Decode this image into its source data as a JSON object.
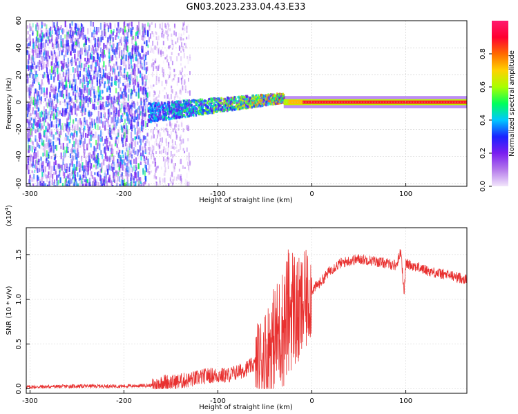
{
  "title": "GN03.2023.233.04.43.E33",
  "chart_data": [
    {
      "type": "heatmap",
      "xlabel": "Height of straight line (km)",
      "ylabel": "Frequency (Hz)",
      "xlim": [
        -304,
        165
      ],
      "ylim": [
        -62,
        60
      ],
      "xticks": [
        -300,
        -200,
        -100,
        0,
        100
      ],
      "yticks": [
        60,
        40,
        20,
        0,
        -20,
        -40,
        -60
      ],
      "colorbar": {
        "label": "Normalized spectral amplitude",
        "range": [
          0,
          1
        ],
        "ticks": [
          "0.0",
          "0.2",
          "0.4",
          "0.6",
          "0.8"
        ],
        "colors": [
          "#f2e6fb",
          "#b57aeb",
          "#7a1ef0",
          "#1a22ff",
          "#00c8ff",
          "#00ff5a",
          "#a8ff00",
          "#ffd200",
          "#ff6a00",
          "#ff0030",
          "#ff1a6e"
        ]
      },
      "regions": [
        {
          "x_range": [
            -304,
            -175
          ],
          "pattern": "broadband speckle noise",
          "amplitude": 0.15
        },
        {
          "x_range": [
            -175,
            -130
          ],
          "pattern": "noise to signal transition",
          "amplitude": 0.25
        },
        {
          "x_range": [
            -175,
            -30
          ],
          "pattern": "signal band near 0 Hz",
          "amplitude": 0.45,
          "drift_hz": [
            -7,
            4
          ]
        },
        {
          "x_range": [
            -30,
            165
          ],
          "pattern": "narrow strong line at 0 Hz",
          "amplitude": 1.0
        }
      ]
    },
    {
      "type": "line",
      "xlabel": "Height of straight line (km)",
      "ylabel": "SNR (10 * v/v)",
      "yscale_label": "(x10",
      "yscale_exp": "4",
      "yscale_close": ")",
      "xlim": [
        -304,
        165
      ],
      "ylim": [
        -0.05,
        1.8
      ],
      "xticks": [
        -300,
        -200,
        -100,
        0,
        100
      ],
      "yticks": [
        "0.0",
        "0.5",
        "1.0",
        "1.5"
      ],
      "ytick_values": [
        0,
        0.5,
        1.0,
        1.5
      ],
      "color": "#e8302f",
      "x": [
        -304,
        -250,
        -200,
        -165,
        -158,
        -150,
        -130,
        -110,
        -90,
        -75,
        -60,
        -50,
        -40,
        -30,
        -25,
        -20,
        -15,
        -10,
        -5,
        0,
        10,
        20,
        30,
        40,
        50,
        60,
        70,
        80,
        90,
        95,
        98,
        100,
        110,
        120,
        130,
        140,
        150,
        165
      ],
      "y": [
        0.02,
        0.03,
        0.03,
        0.04,
        0.08,
        0.07,
        0.1,
        0.15,
        0.15,
        0.2,
        0.28,
        0.38,
        0.55,
        0.7,
        0.85,
        0.95,
        0.8,
        0.9,
        1.0,
        1.1,
        1.2,
        1.33,
        1.4,
        1.43,
        1.45,
        1.44,
        1.42,
        1.4,
        1.38,
        1.55,
        1.05,
        1.4,
        1.37,
        1.33,
        1.3,
        1.28,
        1.26,
        1.22
      ]
    }
  ]
}
